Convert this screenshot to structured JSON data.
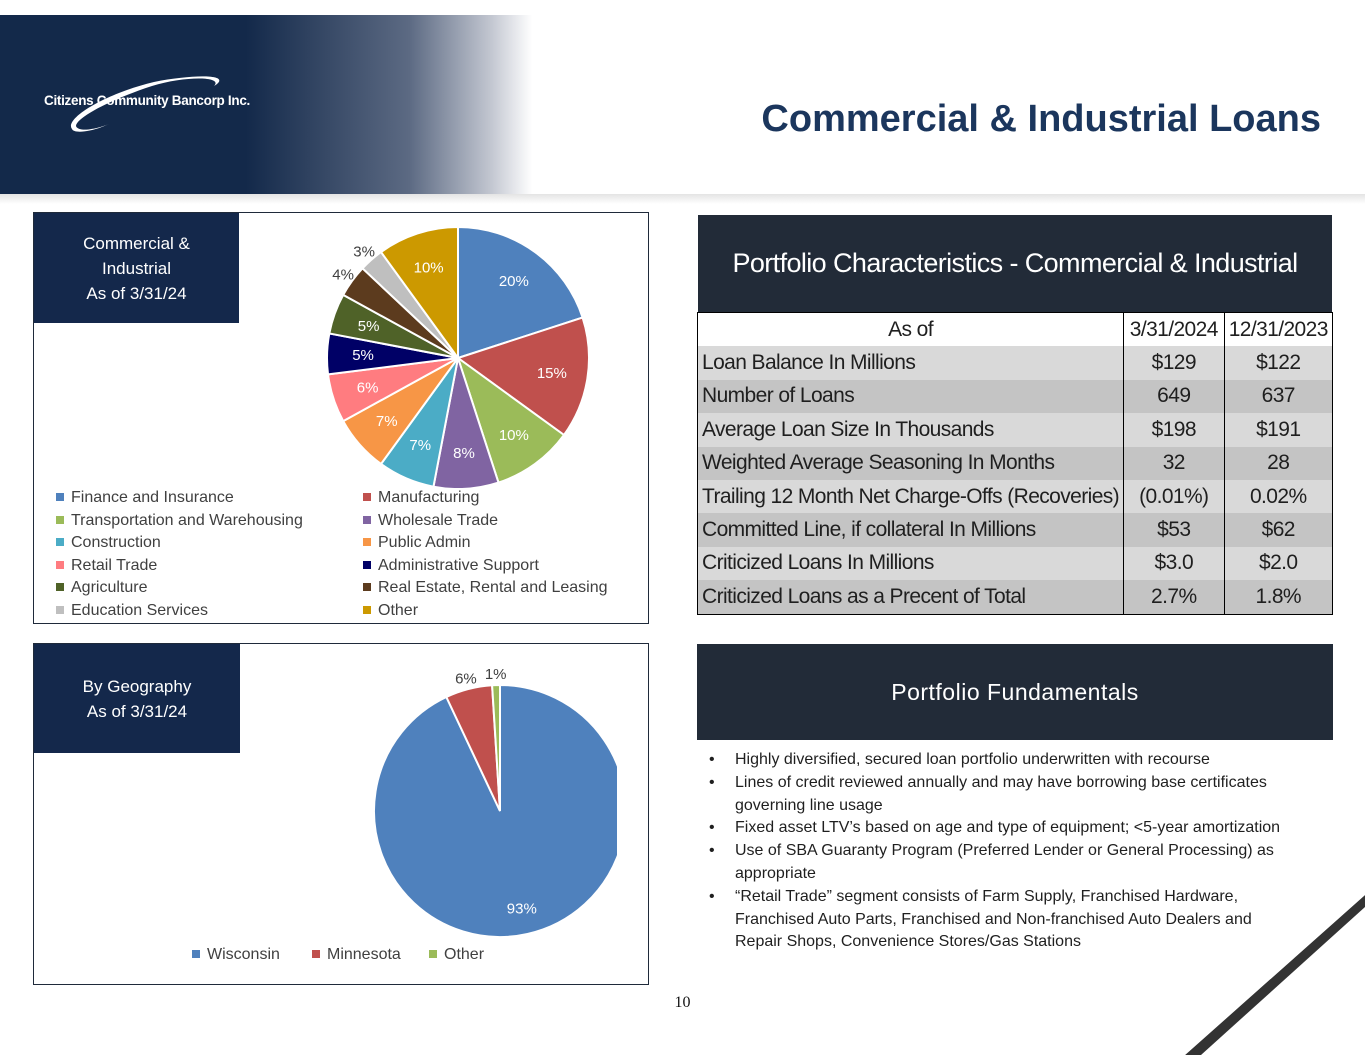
{
  "header": {
    "logo_text": "Citizens Community Bancorp Inc.",
    "title": "Commercial & Industrial Loans",
    "page_number": "10"
  },
  "industry_panel": {
    "label_lines": [
      "Commercial &",
      "Industrial",
      "As of 3/31/24"
    ]
  },
  "geography_panel": {
    "label_lines": [
      "By Geography",
      "As of 3/31/24"
    ]
  },
  "chart_data": [
    {
      "type": "pie",
      "title": "",
      "categories": [
        "Finance and Insurance",
        "Manufacturing",
        "Transportation and Warehousing",
        "Wholesale Trade",
        "Construction",
        "Public Admin",
        "Retail Trade",
        "Administrative Support",
        "Agriculture",
        "Real Estate, Rental and Leasing",
        "Education Services",
        "Other"
      ],
      "values": [
        20,
        15,
        10,
        8,
        7,
        7,
        6,
        5,
        5,
        4,
        3,
        10
      ],
      "labels": [
        "20%",
        "15%",
        "10%",
        "8%",
        "7%",
        "7%",
        "6%",
        "5%",
        "5%",
        "4%",
        "3%",
        "10%"
      ],
      "colors": [
        "#4f81bd",
        "#c0504d",
        "#9bbb59",
        "#8064a2",
        "#4bacc6",
        "#f79646",
        "#ff7c80",
        "#000066",
        "#4f6228",
        "#5c3b1e",
        "#bfbfbf",
        "#cc9900"
      ],
      "legend_placement": "bottom"
    },
    {
      "type": "pie",
      "title": "",
      "categories": [
        "Wisconsin",
        "Minnesota",
        "Other"
      ],
      "values": [
        93,
        6,
        1
      ],
      "labels": [
        "93%",
        "6%",
        "1%"
      ],
      "colors": [
        "#4f81bd",
        "#c0504d",
        "#9bbb59"
      ],
      "legend_placement": "bottom"
    }
  ],
  "portfolio_table": {
    "title": "Portfolio Characteristics - Commercial & Industrial",
    "columns": [
      "As of",
      "3/31/2024",
      "12/31/2023"
    ],
    "rows": [
      [
        "Loan Balance In Millions",
        "$129",
        "$122"
      ],
      [
        "Number of Loans",
        "649",
        "637"
      ],
      [
        "Average Loan Size In Thousands",
        "$198",
        "$191"
      ],
      [
        "Weighted Average Seasoning In Months",
        "32",
        "28"
      ],
      [
        "Trailing 12 Month Net Charge-Offs (Recoveries)",
        "(0.01%)",
        "0.02%"
      ],
      [
        "Committed Line, if collateral In Millions",
        "$53",
        "$62"
      ],
      [
        "Criticized Loans In Millions",
        "$3.0",
        "$2.0"
      ],
      [
        "Criticized Loans as a Precent of Total",
        "2.7%",
        "1.8%"
      ]
    ]
  },
  "fundamentals": {
    "title": "Portfolio Fundamentals",
    "bullets": [
      "Highly diversified, secured loan portfolio underwritten with recourse",
      "Lines of credit reviewed annually and may have borrowing base certificates governing line usage",
      "Fixed asset LTV’s based on age and type of equipment; <5-year amortization",
      "Use of SBA Guaranty Program (Preferred Lender or General Processing) as appropriate",
      "“Retail Trade” segment consists of Farm Supply, Franchised Hardware, Franchised Auto Parts, Franchised and Non-franchised Auto Dealers and Repair Shops, Convenience Stores/Gas Stations"
    ]
  }
}
